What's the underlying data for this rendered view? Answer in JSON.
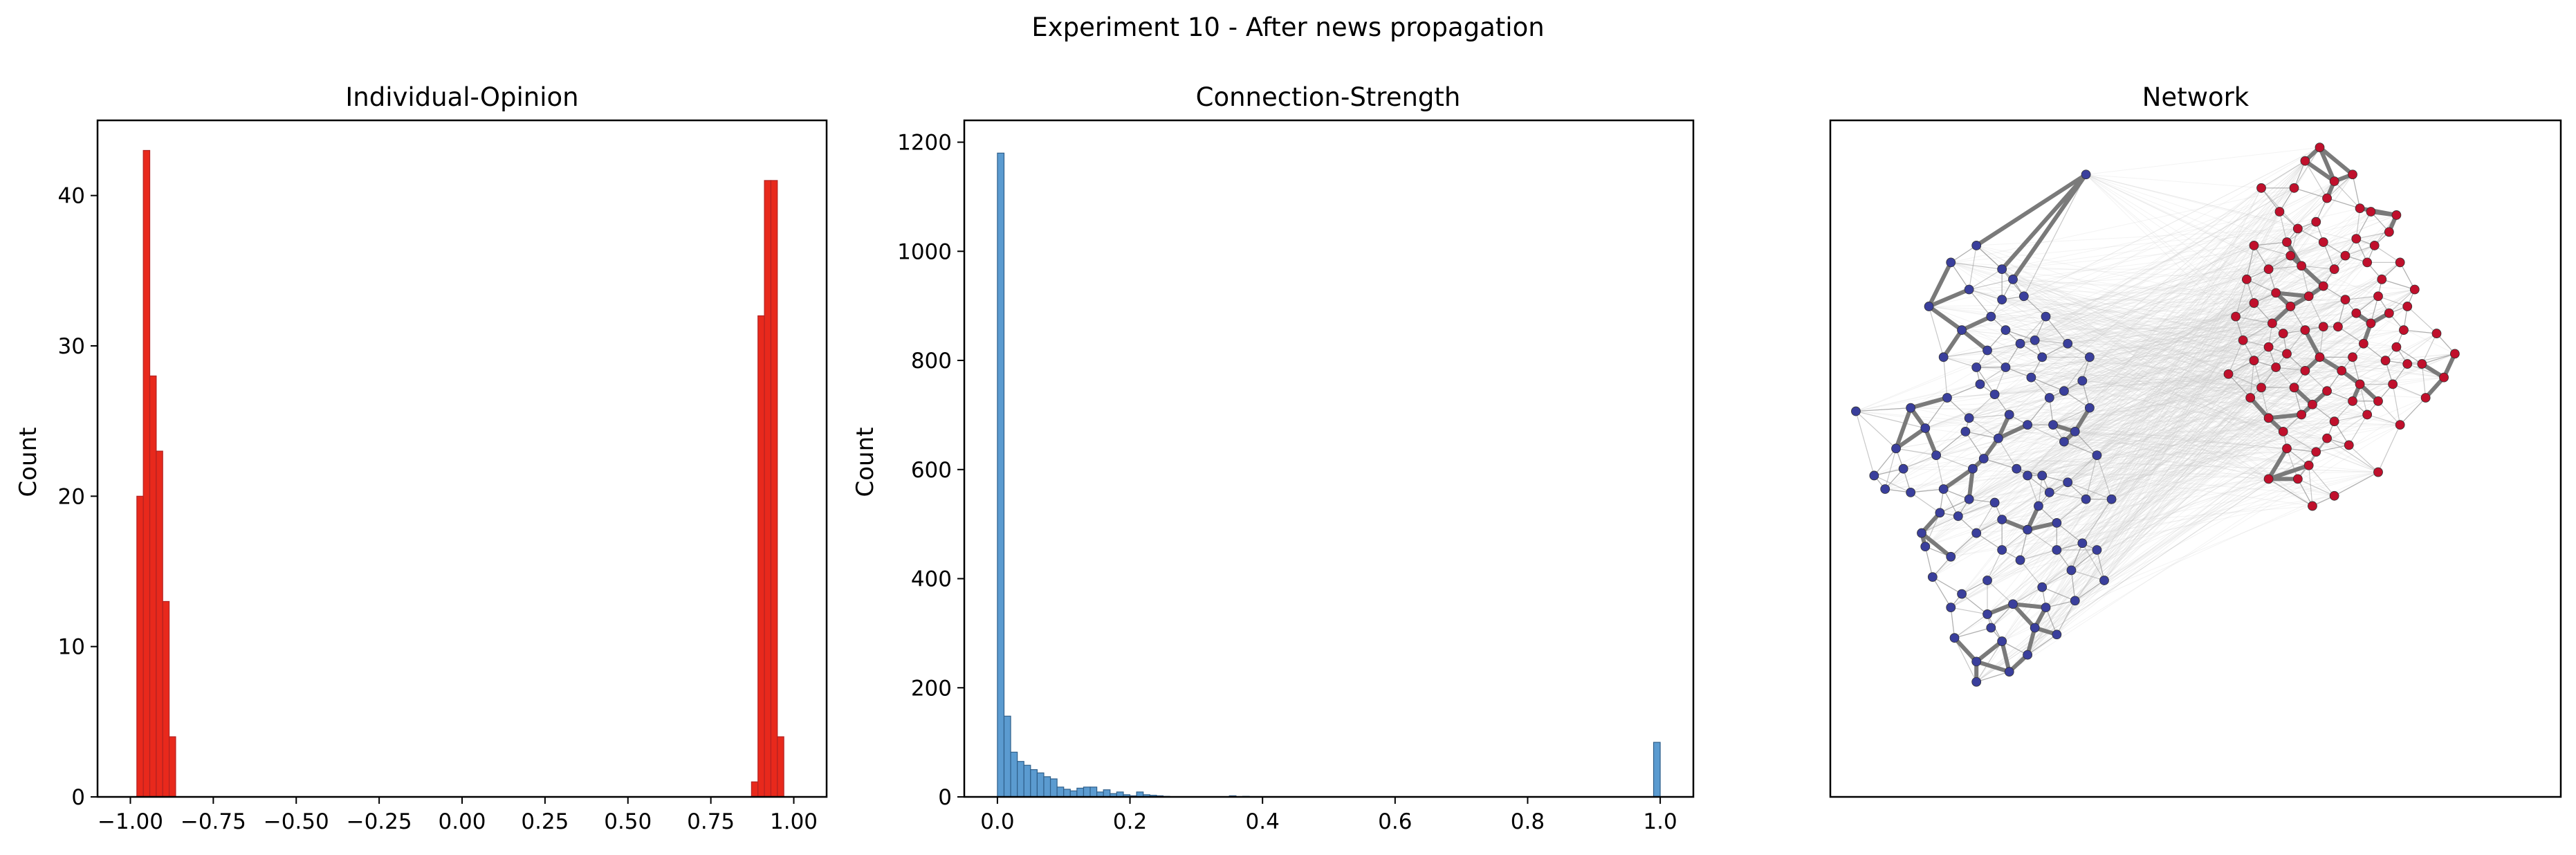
{
  "figure": {
    "suptitle": "Experiment 10 - After news propagation"
  },
  "chart_data": [
    {
      "type": "bar",
      "title": "Individual-Opinion",
      "xlabel": "",
      "ylabel": "Count",
      "xlim": [
        -1.099,
        1.099
      ],
      "ylim": [
        0,
        45
      ],
      "xticks": [
        -1.0,
        -0.75,
        -0.5,
        -0.25,
        0.0,
        0.25,
        0.5,
        0.75,
        1.0
      ],
      "xtick_labels": [
        "−1.00",
        "−0.75",
        "−0.50",
        "−0.25",
        "0.00",
        "0.25",
        "0.50",
        "0.75",
        "1.00"
      ],
      "yticks": [
        0,
        10,
        20,
        30,
        40
      ],
      "ytick_labels": [
        "0",
        "10",
        "20",
        "30",
        "40"
      ],
      "bin_width": 0.0195,
      "bins": [
        {
          "x0": -0.9805,
          "count": 20
        },
        {
          "x0": -0.961,
          "count": 43
        },
        {
          "x0": -0.9415,
          "count": 28
        },
        {
          "x0": -0.922,
          "count": 23
        },
        {
          "x0": -0.9025,
          "count": 13
        },
        {
          "x0": -0.883,
          "count": 4
        },
        {
          "x0": 0.8725,
          "count": 1
        },
        {
          "x0": 0.892,
          "count": 32
        },
        {
          "x0": 0.9115,
          "count": 41
        },
        {
          "x0": 0.931,
          "count": 41
        },
        {
          "x0": 0.9505,
          "count": 4
        }
      ],
      "color": "#e8291c",
      "edge_color": "#b22222",
      "grid": false
    },
    {
      "type": "bar",
      "title": "Connection-Strength",
      "xlabel": "",
      "ylabel": "Count",
      "xlim": [
        -0.05,
        1.05
      ],
      "ylim": [
        0,
        1240
      ],
      "xticks": [
        0.0,
        0.2,
        0.4,
        0.6,
        0.8,
        1.0
      ],
      "xtick_labels": [
        "0.0",
        "0.2",
        "0.4",
        "0.6",
        "0.8",
        "1.0"
      ],
      "yticks": [
        0,
        200,
        400,
        600,
        800,
        1000,
        1200
      ],
      "ytick_labels": [
        "0",
        "200",
        "400",
        "600",
        "800",
        "1000",
        "1200"
      ],
      "bin_width": 0.01,
      "bins": [
        {
          "x0": 0.0,
          "count": 1180
        },
        {
          "x0": 0.01,
          "count": 148
        },
        {
          "x0": 0.02,
          "count": 82
        },
        {
          "x0": 0.03,
          "count": 65
        },
        {
          "x0": 0.04,
          "count": 58
        },
        {
          "x0": 0.05,
          "count": 50
        },
        {
          "x0": 0.06,
          "count": 44
        },
        {
          "x0": 0.07,
          "count": 37
        },
        {
          "x0": 0.08,
          "count": 33
        },
        {
          "x0": 0.09,
          "count": 18
        },
        {
          "x0": 0.1,
          "count": 14
        },
        {
          "x0": 0.11,
          "count": 11
        },
        {
          "x0": 0.12,
          "count": 16
        },
        {
          "x0": 0.13,
          "count": 18
        },
        {
          "x0": 0.14,
          "count": 18
        },
        {
          "x0": 0.15,
          "count": 9
        },
        {
          "x0": 0.16,
          "count": 13
        },
        {
          "x0": 0.17,
          "count": 6
        },
        {
          "x0": 0.18,
          "count": 9
        },
        {
          "x0": 0.19,
          "count": 4
        },
        {
          "x0": 0.2,
          "count": 2
        },
        {
          "x0": 0.21,
          "count": 9
        },
        {
          "x0": 0.22,
          "count": 4
        },
        {
          "x0": 0.23,
          "count": 3
        },
        {
          "x0": 0.24,
          "count": 2
        },
        {
          "x0": 0.25,
          "count": 1
        },
        {
          "x0": 0.35,
          "count": 2
        },
        {
          "x0": 0.37,
          "count": 1
        },
        {
          "x0": 0.99,
          "count": 100
        }
      ],
      "color": "#5b9bd0",
      "edge_color": "#2f5f8a",
      "grid": false
    },
    {
      "type": "scatter",
      "title": "Network",
      "xlabel": "",
      "ylabel": "",
      "axes_visible": false,
      "xlim": [
        -1.0,
        1.0
      ],
      "ylim": [
        -1.0,
        1.0
      ],
      "series": [
        {
          "color": "#3a3f9c",
          "nodes": [
            [
              -0.3,
              0.84
            ],
            [
              -0.93,
              0.14
            ],
            [
              -0.6,
              0.63
            ],
            [
              -0.53,
              0.56
            ],
            [
              -0.62,
              0.5
            ],
            [
              -0.53,
              0.47
            ],
            [
              -0.47,
              0.48
            ],
            [
              -0.64,
              0.38
            ],
            [
              -0.52,
              0.38
            ],
            [
              -0.41,
              0.42
            ],
            [
              -0.42,
              0.3
            ],
            [
              -0.31,
              0.23
            ],
            [
              -0.36,
              0.2
            ],
            [
              -0.29,
              0.15
            ],
            [
              -0.78,
              0.15
            ],
            [
              -0.68,
              0.18
            ],
            [
              -0.59,
              0.22
            ],
            [
              -0.52,
              0.27
            ],
            [
              -0.45,
              0.24
            ],
            [
              -0.39,
              0.1
            ],
            [
              -0.46,
              0.1
            ],
            [
              -0.54,
              0.06
            ],
            [
              -0.63,
              0.08
            ],
            [
              -0.71,
              0.01
            ],
            [
              -0.82,
              0.03
            ],
            [
              -0.85,
              -0.09
            ],
            [
              -0.78,
              -0.1
            ],
            [
              -0.69,
              -0.09
            ],
            [
              -0.61,
              -0.03
            ],
            [
              -0.55,
              -0.13
            ],
            [
              -0.49,
              -0.03
            ],
            [
              -0.42,
              -0.05
            ],
            [
              -0.35,
              -0.07
            ],
            [
              -0.3,
              -0.12
            ],
            [
              -0.38,
              -0.19
            ],
            [
              -0.46,
              -0.21
            ],
            [
              -0.53,
              -0.27
            ],
            [
              -0.6,
              -0.22
            ],
            [
              -0.67,
              -0.29
            ],
            [
              -0.72,
              -0.35
            ],
            [
              -0.64,
              -0.4
            ],
            [
              -0.57,
              -0.36
            ],
            [
              -0.5,
              -0.43
            ],
            [
              -0.42,
              -0.38
            ],
            [
              -0.34,
              -0.33
            ],
            [
              -0.27,
              -0.27
            ],
            [
              -0.38,
              -0.52
            ],
            [
              -0.46,
              -0.58
            ],
            [
              -0.53,
              -0.54
            ],
            [
              -0.6,
              -0.6
            ],
            [
              -0.66,
              -0.53
            ],
            [
              -0.57,
              -0.46
            ],
            [
              -0.48,
              -0.3
            ],
            [
              -0.43,
              -0.14
            ],
            [
              -0.58,
              0.0
            ],
            [
              -0.65,
              -0.17
            ],
            [
              -0.75,
              -0.22
            ],
            [
              -0.8,
              -0.03
            ],
            [
              -0.36,
              0.05
            ],
            [
              -0.27,
              0.01
            ],
            [
              -0.44,
              0.35
            ],
            [
              -0.57,
              0.32
            ],
            [
              -0.69,
              0.3
            ],
            [
              -0.73,
              0.45
            ],
            [
              -0.67,
              0.58
            ],
            [
              -0.5,
              0.53
            ],
            [
              -0.4,
              0.18
            ],
            [
              -0.55,
              0.19
            ],
            [
              -0.7,
              -0.16
            ],
            [
              -0.6,
              -0.66
            ],
            [
              -0.51,
              -0.63
            ],
            [
              -0.41,
              -0.44
            ],
            [
              -0.33,
              -0.42
            ],
            [
              -0.25,
              -0.36
            ],
            [
              -0.31,
              -0.25
            ],
            [
              -0.46,
              -0.05
            ],
            [
              -0.62,
              0.12
            ],
            [
              -0.74,
              0.09
            ],
            [
              -0.88,
              -0.05
            ],
            [
              -0.67,
              -0.44
            ],
            [
              -0.53,
              -0.18
            ],
            [
              -0.38,
              -0.27
            ],
            [
              -0.56,
              0.42
            ],
            [
              -0.48,
              0.34
            ],
            [
              -0.33,
              0.08
            ],
            [
              -0.29,
              0.3
            ],
            [
              -0.6,
              0.27
            ],
            [
              -0.4,
              -0.1
            ],
            [
              -0.51,
              0.13
            ],
            [
              -0.62,
              -0.12
            ],
            [
              -0.74,
              -0.26
            ],
            [
              -0.44,
              -0.5
            ],
            [
              -0.56,
              -0.5
            ],
            [
              -0.35,
              0.34
            ],
            [
              -0.23,
              -0.12
            ]
          ]
        },
        {
          "color": "#c0102c",
          "nodes": [
            [
              0.34,
              0.92
            ],
            [
              0.3,
              0.88
            ],
            [
              0.43,
              0.84
            ],
            [
              0.18,
              0.8
            ],
            [
              0.27,
              0.8
            ],
            [
              0.36,
              0.77
            ],
            [
              0.45,
              0.74
            ],
            [
              0.55,
              0.72
            ],
            [
              0.53,
              0.67
            ],
            [
              0.44,
              0.65
            ],
            [
              0.35,
              0.64
            ],
            [
              0.25,
              0.64
            ],
            [
              0.16,
              0.63
            ],
            [
              0.2,
              0.56
            ],
            [
              0.29,
              0.57
            ],
            [
              0.38,
              0.56
            ],
            [
              0.47,
              0.58
            ],
            [
              0.56,
              0.58
            ],
            [
              0.6,
              0.5
            ],
            [
              0.5,
              0.48
            ],
            [
              0.41,
              0.47
            ],
            [
              0.31,
              0.48
            ],
            [
              0.22,
              0.49
            ],
            [
              0.14,
              0.53
            ],
            [
              0.11,
              0.42
            ],
            [
              0.21,
              0.4
            ],
            [
              0.3,
              0.38
            ],
            [
              0.39,
              0.39
            ],
            [
              0.48,
              0.4
            ],
            [
              0.57,
              0.38
            ],
            [
              0.66,
              0.37
            ],
            [
              0.71,
              0.31
            ],
            [
              0.62,
              0.28
            ],
            [
              0.52,
              0.29
            ],
            [
              0.43,
              0.3
            ],
            [
              0.34,
              0.3
            ],
            [
              0.25,
              0.31
            ],
            [
              0.16,
              0.29
            ],
            [
              0.09,
              0.25
            ],
            [
              0.18,
              0.21
            ],
            [
              0.27,
              0.21
            ],
            [
              0.36,
              0.2
            ],
            [
              0.45,
              0.22
            ],
            [
              0.54,
              0.22
            ],
            [
              0.63,
              0.18
            ],
            [
              0.56,
              0.1
            ],
            [
              0.47,
              0.13
            ],
            [
              0.38,
              0.11
            ],
            [
              0.29,
              0.13
            ],
            [
              0.2,
              0.12
            ],
            [
              0.25,
              0.03
            ],
            [
              0.33,
              0.02
            ],
            [
              0.42,
              0.04
            ],
            [
              0.28,
              -0.06
            ],
            [
              0.38,
              -0.11
            ],
            [
              0.32,
              -0.14
            ],
            [
              0.2,
              -0.06
            ],
            [
              0.5,
              -0.04
            ],
            [
              0.48,
              0.73
            ],
            [
              0.33,
              0.7
            ],
            [
              0.23,
              0.73
            ],
            [
              0.41,
              0.6
            ],
            [
              0.51,
              0.53
            ],
            [
              0.26,
              0.45
            ],
            [
              0.44,
              0.43
            ],
            [
              0.55,
              0.33
            ],
            [
              0.3,
              0.26
            ],
            [
              0.4,
              0.26
            ],
            [
              0.22,
              0.27
            ],
            [
              0.5,
              0.17
            ],
            [
              0.32,
              0.16
            ],
            [
              0.24,
              0.08
            ],
            [
              0.36,
              0.06
            ],
            [
              0.13,
              0.35
            ],
            [
              0.35,
              0.39
            ],
            [
              0.58,
              0.45
            ],
            [
              0.28,
              0.68
            ],
            [
              0.38,
              0.82
            ],
            [
              0.16,
              0.46
            ],
            [
              0.46,
              0.34
            ],
            [
              0.58,
              0.28
            ],
            [
              0.31,
              -0.02
            ],
            [
              0.26,
              0.6
            ],
            [
              0.49,
              0.63
            ],
            [
              0.68,
              0.24
            ],
            [
              0.15,
              0.18
            ],
            [
              0.43,
              0.17
            ],
            [
              0.35,
              0.51
            ],
            [
              0.2,
              0.33
            ],
            [
              0.53,
              0.43
            ],
            [
              0.24,
              0.37
            ]
          ]
        }
      ]
    }
  ]
}
